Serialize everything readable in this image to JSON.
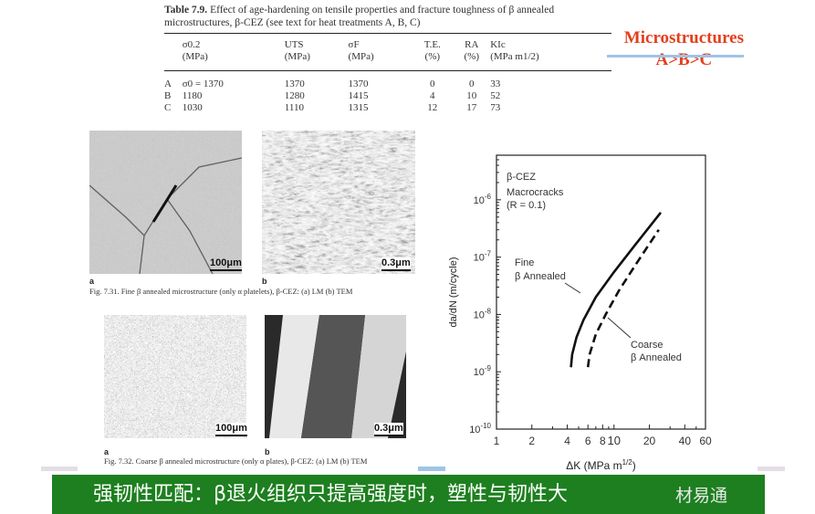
{
  "table": {
    "title_bold": "Table 7.9.",
    "title": "Effect of age-hardening on tensile properties and fracture toughness of β annealed microstructures, β-CEZ (see text for heat treatments A, B, C)",
    "headers": [
      {
        "name": "",
        "unit": ""
      },
      {
        "name": "σ0.2",
        "unit": "(MPa)"
      },
      {
        "name": "UTS",
        "unit": "(MPa)"
      },
      {
        "name": "σF",
        "unit": "(MPa)"
      },
      {
        "name": "T.E.",
        "unit": "(%)"
      },
      {
        "name": "RA",
        "unit": "(%)"
      },
      {
        "name": "KIc",
        "unit": "(MPa m1/2)"
      }
    ],
    "rows": [
      [
        "A",
        "σ0 = 1370",
        "1370",
        "1370",
        "0",
        "0",
        "33"
      ],
      [
        "B",
        "1180",
        "1280",
        "1415",
        "4",
        "10",
        "52"
      ],
      [
        "C",
        "1030",
        "1110",
        "1315",
        "12",
        "17",
        "73"
      ]
    ]
  },
  "annotation": {
    "line1": "Microstructures",
    "line2": "A>B>C",
    "color": "#e2401c"
  },
  "figures": {
    "fig1": {
      "a_label": "a",
      "b_label": "b",
      "scale_a": "100μm",
      "scale_b": "0.3μm",
      "caption": "Fig. 7.31. Fine β annealed microstructure (only α platelets), β-CEZ:  (a) LM  (b) TEM"
    },
    "fig2": {
      "a_label": "a",
      "b_label": "b",
      "scale_a": "100μm",
      "scale_b": "0.3μm",
      "caption": "Fig. 7.32. Coarse β annealed microstructure (only α plates), β-CEZ:  (a) LM  (b) TEM"
    }
  },
  "chart_data": {
    "type": "line",
    "xlabel": "ΔK (MPa m1/2)",
    "ylabel": "da/dN (m/cycle)",
    "x_scale": "log",
    "y_scale": "log",
    "xlim": [
      1,
      60
    ],
    "ylim": [
      1e-10,
      6e-06
    ],
    "x_ticks": [
      "1",
      "2",
      "4",
      "6",
      "8",
      "10",
      "20",
      "40",
      "60"
    ],
    "y_ticks": [
      "10-10",
      "10-9",
      "10-8",
      "10-7",
      "10-6"
    ],
    "annotations": [
      "β-CEZ",
      "Macrocracks",
      "(R = 0.1)"
    ],
    "series": [
      {
        "name": "Fine β Annealed",
        "style": "solid",
        "points": [
          [
            4.3,
            1.2e-09
          ],
          [
            4.4,
            2e-09
          ],
          [
            4.8,
            4e-09
          ],
          [
            5.5,
            8e-09
          ],
          [
            7,
            2e-08
          ],
          [
            10,
            5.5e-08
          ],
          [
            15,
            1.6e-07
          ],
          [
            25,
            6e-07
          ]
        ]
      },
      {
        "name": "Coarse β Annealed",
        "style": "dashed",
        "points": [
          [
            6,
            1.2e-09
          ],
          [
            6.2,
            2e-09
          ],
          [
            7,
            4.5e-09
          ],
          [
            8.5,
            1e-08
          ],
          [
            11,
            2.6e-08
          ],
          [
            15,
            7e-08
          ],
          [
            24,
            3e-07
          ]
        ]
      }
    ],
    "grid": false
  },
  "banner": {
    "text": "强韧性匹配：β退火组织只提高强度时，塑性与韧性大",
    "color": "#1d7f1f"
  },
  "watermark": "材易通"
}
